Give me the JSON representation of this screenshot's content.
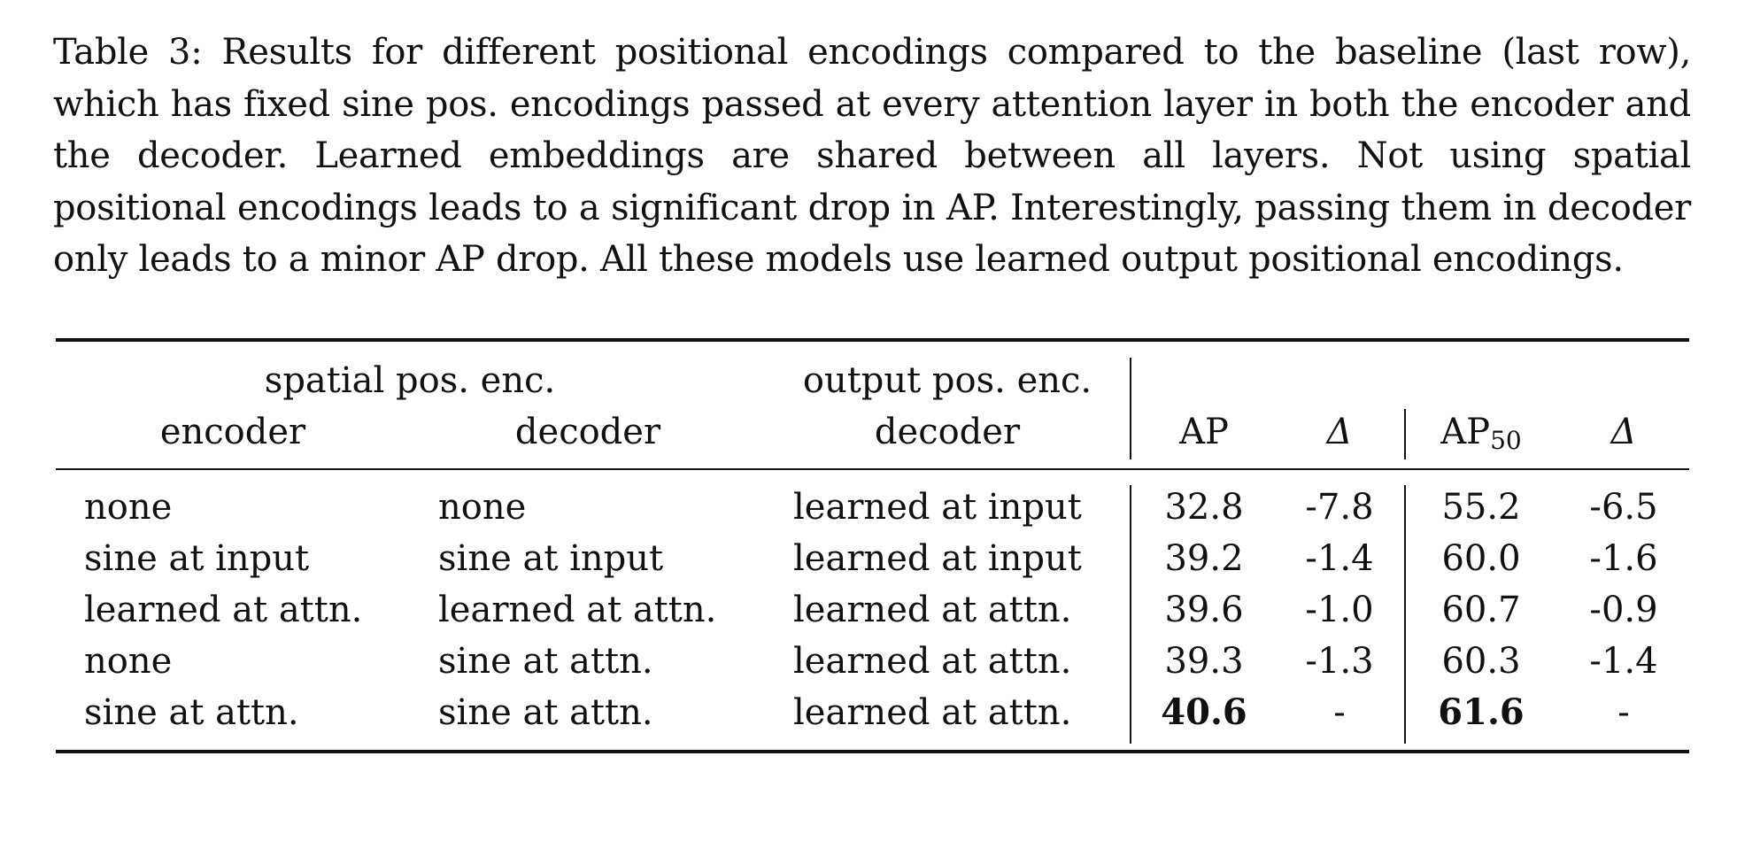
{
  "caption": "Table 3: Results for different positional encodings compared to the baseline (last row), which has fixed sine pos. encodings passed at every attention layer in both the encoder and the decoder. Learned embeddings are shared between all layers. Not using spatial positional encodings leads to a significant drop in AP. Interestingly, passing them in decoder only leads to a minor AP drop. All these models use learned output positional encodings.",
  "header": {
    "group_spatial": "spatial pos. enc.",
    "group_output": "output pos. enc.",
    "encoder": "encoder",
    "decoder": "decoder",
    "out_decoder": "decoder",
    "ap": "AP",
    "delta1": "Δ",
    "ap50_main": "AP",
    "ap50_sub": "50",
    "delta2": "Δ"
  },
  "rows": [
    {
      "encoder": "none",
      "decoder": "none",
      "output": "learned at input",
      "ap": "32.8",
      "d1": "-7.8",
      "ap50": "55.2",
      "d2": "-6.5"
    },
    {
      "encoder": "sine at input",
      "decoder": "sine at input",
      "output": "learned at input",
      "ap": "39.2",
      "d1": "-1.4",
      "ap50": "60.0",
      "d2": "-1.6"
    },
    {
      "encoder": "learned at attn.",
      "decoder": "learned at attn.",
      "output": "learned at attn.",
      "ap": "39.6",
      "d1": "-1.0",
      "ap50": "60.7",
      "d2": "-0.9"
    },
    {
      "encoder": "none",
      "decoder": "sine at attn.",
      "output": "learned at attn.",
      "ap": "39.3",
      "d1": "-1.3",
      "ap50": "60.3",
      "d2": "-1.4"
    },
    {
      "encoder": "sine at attn.",
      "decoder": "sine at attn.",
      "output": "learned at attn.",
      "ap": "40.6",
      "d1": "-",
      "ap50": "61.6",
      "d2": "-"
    }
  ]
}
